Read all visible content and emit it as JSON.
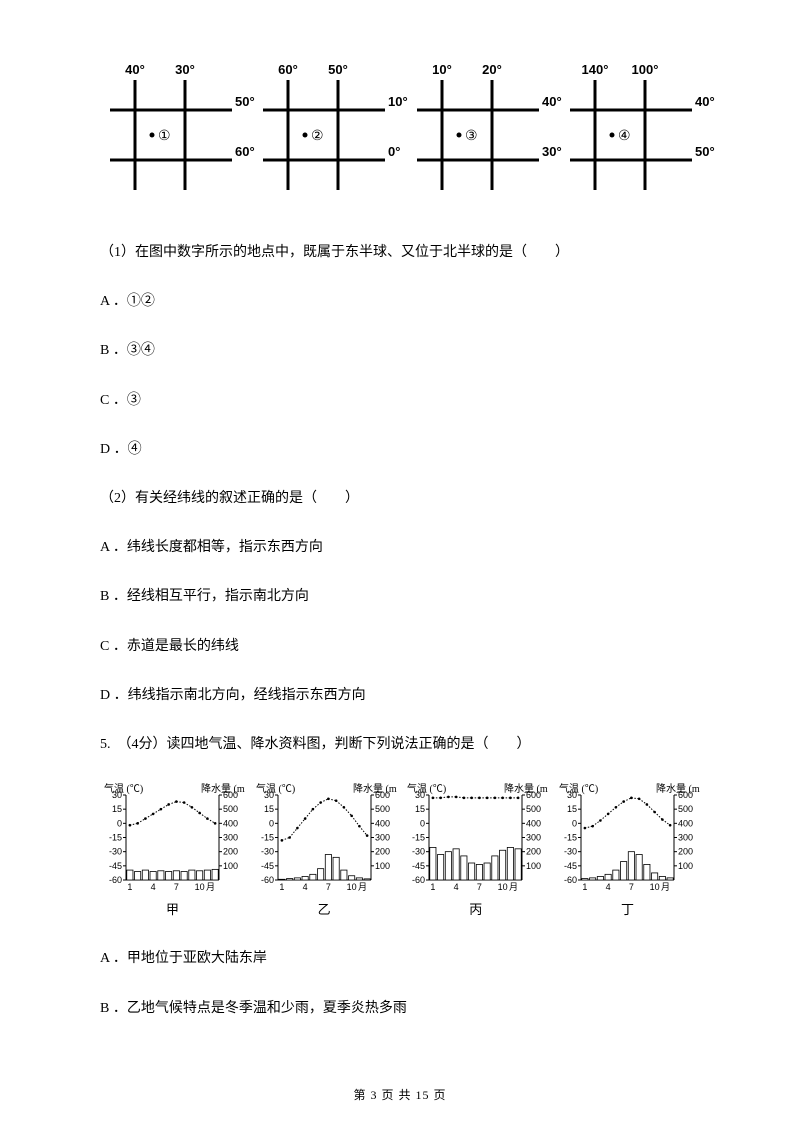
{
  "grids": {
    "stroke": "#000000",
    "stroke_width": 3,
    "items": [
      {
        "top_labels": [
          "40°",
          "30°"
        ],
        "right_labels": [
          "50°",
          "60°"
        ],
        "dot_label": "①"
      },
      {
        "top_labels": [
          "60°",
          "50°"
        ],
        "right_labels": [
          "10°",
          "0°"
        ],
        "dot_label": "②"
      },
      {
        "top_labels": [
          "10°",
          "20°"
        ],
        "right_labels": [
          "40°",
          "30°"
        ],
        "dot_label": "③"
      },
      {
        "top_labels": [
          "140°",
          "100°"
        ],
        "right_labels": [
          "40°",
          "50°"
        ],
        "dot_label": "④"
      }
    ]
  },
  "q1": {
    "prompt": "（1）在图中数字所示的地点中，既属于东半球、又位于北半球的是（　　）",
    "opts": [
      "A ．①②",
      "B ．③④",
      "C ．③",
      "D ．④"
    ]
  },
  "q2": {
    "prompt": "（2）有关经纬线的叙述正确的是（　　）",
    "opts": [
      "A ．纬线长度都相等，指示东西方向",
      "B ．经线相互平行，指示南北方向",
      "C ．赤道是最长的纬线",
      "D ．纬线指示南北方向，经线指示东西方向"
    ]
  },
  "q5": {
    "prompt": "5.　（4分）读四地气温、降水资料图，判断下列说法正确的是（　　）",
    "opts": [
      "A ．甲地位于亚欧大陆东岸",
      "B ．乙地气候特点是冬季温和少雨，夏季炎热多雨"
    ]
  },
  "climate": {
    "temp_axis": {
      "label": "气温 (℃)",
      "min": -60,
      "max": 30,
      "ticks": [
        30,
        15,
        0,
        -15,
        -30,
        -45,
        -60
      ]
    },
    "precip_axis": {
      "label": "降水量 (mm)",
      "min": 0,
      "max": 600,
      "ticks": [
        600,
        500,
        400,
        300,
        200,
        100
      ]
    },
    "x_ticks": [
      "1",
      "4",
      "7",
      "10"
    ],
    "x_label": "月",
    "plot": {
      "bg": "#ffffff",
      "grid": "#000000",
      "axis": "#000000",
      "bar_stroke": "#000000",
      "bar_fill": "#ffffff",
      "line": "#000000"
    },
    "charts": [
      {
        "name": "甲",
        "temp": [
          -2,
          0,
          5,
          10,
          15,
          20,
          23,
          22,
          17,
          11,
          5,
          0
        ],
        "precip": [
          70,
          60,
          70,
          60,
          65,
          60,
          65,
          60,
          70,
          65,
          70,
          75
        ]
      },
      {
        "name": "乙",
        "temp": [
          -18,
          -15,
          -5,
          5,
          15,
          22,
          26,
          24,
          17,
          8,
          -3,
          -13
        ],
        "precip": [
          5,
          10,
          15,
          25,
          40,
          80,
          180,
          160,
          70,
          30,
          15,
          8
        ]
      },
      {
        "name": "丙",
        "temp": [
          27,
          27,
          28,
          28,
          27,
          27,
          27,
          27,
          27,
          27,
          27,
          27
        ],
        "precip": [
          230,
          180,
          200,
          220,
          170,
          120,
          110,
          120,
          170,
          210,
          230,
          220
        ]
      },
      {
        "name": "丁",
        "temp": [
          -5,
          -3,
          3,
          10,
          17,
          23,
          27,
          26,
          20,
          12,
          4,
          -2
        ],
        "precip": [
          10,
          15,
          25,
          40,
          70,
          130,
          200,
          180,
          110,
          50,
          25,
          15
        ]
      }
    ]
  },
  "footer": {
    "text": "第 3 页 共 15 页"
  }
}
